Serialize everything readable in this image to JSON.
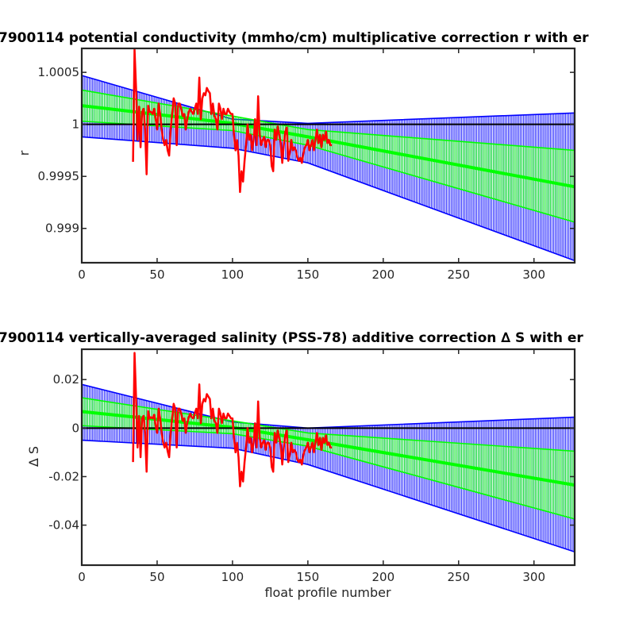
{
  "chart_data": [
    {
      "type": "line",
      "title": "7900114 potential conductivity (mmho/cm) multiplicative correction r with er",
      "xlabel": "",
      "ylabel": "r",
      "xlim": [
        0,
        327
      ],
      "ylim": [
        0.99867,
        1.00073
      ],
      "xticks": [
        0,
        50,
        100,
        150,
        200,
        250,
        300
      ],
      "xtick_labels": [
        "0",
        "50",
        "100",
        "150",
        "200",
        "250",
        "300"
      ],
      "yticks": [
        0.999,
        0.9995,
        1,
        1.0005
      ],
      "ytick_labels": [
        "0.999",
        "0.9995",
        "1",
        "1.0005"
      ],
      "reference_line": 1,
      "grid": false,
      "colors": {
        "blue": "#0000ff",
        "green": "#00ff00",
        "red": "#ff0000",
        "black": "#000000"
      },
      "series": [
        {
          "color": "blue",
          "role": "error band",
          "x": [
            0,
            100,
            150,
            327
          ],
          "upper": [
            1.00047,
            1.00005,
            1.00001,
            1.00011
          ],
          "lower": [
            0.99988,
            0.99977,
            0.99963,
            0.99869
          ]
        },
        {
          "color": "green",
          "role": "error band",
          "x": [
            0,
            100,
            150,
            327
          ],
          "upper": [
            1.00033,
            1.00008,
            0.99995,
            0.99975
          ],
          "lower": [
            1.00003,
            0.99994,
            0.9998,
            0.99906
          ]
        },
        {
          "color": "green",
          "role": "fit",
          "x": [
            0,
            100,
            150,
            327
          ],
          "y": [
            1.00018,
            1.00001,
            0.99988,
            0.9994
          ]
        },
        {
          "color": "red",
          "role": "profile data",
          "x": [
            34,
            35,
            36,
            37,
            38,
            39,
            40,
            41,
            42,
            43,
            44,
            45,
            46,
            47,
            48,
            49,
            50,
            51,
            52,
            53,
            54,
            55,
            56,
            57,
            58,
            59,
            60,
            61,
            62,
            63,
            64,
            65,
            66,
            67,
            68,
            69,
            70,
            71,
            72,
            73,
            74,
            75,
            76,
            77,
            78,
            79,
            80,
            81,
            82,
            83,
            84,
            85,
            86,
            87,
            88,
            89,
            90,
            91,
            92,
            93,
            94,
            95,
            96,
            97,
            98,
            99,
            100,
            101,
            102,
            103,
            104,
            105,
            106,
            107,
            108,
            109,
            110,
            111,
            112,
            113,
            114,
            115,
            116,
            117,
            118,
            119,
            120,
            121,
            122,
            123,
            124,
            125,
            126,
            127,
            128,
            129,
            130,
            131,
            132,
            133,
            134,
            135,
            136,
            137,
            138,
            139,
            140,
            141,
            142,
            143,
            144,
            145,
            146,
            147,
            148,
            149,
            150,
            151,
            152,
            153,
            154,
            155,
            156,
            157,
            158,
            159,
            160,
            161,
            162,
            163,
            164,
            165,
            166
          ],
          "y": [
            0.99964,
            1.00072,
            1.00035,
            0.99985,
            1.00017,
            0.99978,
            1.00012,
            1.00015,
            0.99995,
            0.99952,
            1.00018,
            1.00012,
            1.00012,
            1.0001,
            1.00015,
            1.00005,
            0.99995,
            1.0002,
            1.0001,
            0.99995,
            0.99985,
            0.9998,
            0.99985,
            0.99975,
            0.9997,
            0.99995,
            1.0001,
            1.00025,
            1.0002,
            0.9998,
            1.0002,
            1.0002,
            1.00015,
            1.00008,
            1.0001,
            0.99995,
            1.00005,
            1.00012,
            1.00015,
            1.00012,
            1.0001,
            1.00015,
            1.0002,
            1.0001,
            1.00045,
            1.00005,
            1.00025,
            1.0003,
            1.00028,
            1.00035,
            1.00032,
            1.0003,
            1.0001,
            1.0002,
            1.00008,
            1.00005,
            0.99995,
            1.0002,
            1.00015,
            1.00005,
            1.00015,
            1.0001,
            1.0001,
            1.00015,
            1.00012,
            1.0001,
            1.0001,
            0.9999,
            0.99975,
            0.99985,
            0.9997,
            0.99935,
            0.99955,
            0.99945,
            0.99965,
            0.9998,
            1.0,
            0.99985,
            0.9999,
            0.99975,
            0.99985,
            1.00005,
            0.9998,
            1.00027,
            0.9999,
            0.9998,
            0.99985,
            0.99988,
            0.99978,
            0.99985,
            0.99985,
            0.9998,
            0.9996,
            0.99955,
            0.99995,
            0.99985,
            0.99998,
            0.9999,
            0.99982,
            0.99963,
            0.9998,
            0.99993,
            0.99997,
            0.99965,
            0.99973,
            0.99985,
            0.99975,
            0.99978,
            0.99975,
            0.99968,
            0.99965,
            0.99968,
            0.99963,
            0.99972,
            0.99978,
            0.9998,
            0.99985,
            0.99975,
            0.9998,
            0.99985,
            0.99975,
            0.99985,
            0.99995,
            0.99982,
            0.9999,
            0.99978,
            0.9999,
            0.99985,
            0.99993,
            0.99982,
            0.99985,
            0.9998,
            0.9998
          ]
        }
      ]
    },
    {
      "type": "line",
      "title": "7900114 vertically-averaged salinity (PSS-78) additive correction ∆ S with er",
      "xlabel": "float profile number",
      "ylabel": "∆ S",
      "xlim": [
        0,
        327
      ],
      "ylim": [
        -0.0565,
        0.0325
      ],
      "xticks": [
        0,
        50,
        100,
        150,
        200,
        250,
        300
      ],
      "xtick_labels": [
        "0",
        "50",
        "100",
        "150",
        "200",
        "250",
        "300"
      ],
      "yticks": [
        -0.04,
        -0.02,
        0,
        0.02
      ],
      "ytick_labels": [
        "-0.04",
        "-0.02",
        "0",
        "0.02"
      ],
      "reference_line": 0,
      "grid": false,
      "colors": {
        "blue": "#0000ff",
        "green": "#00ff00",
        "red": "#ff0000",
        "black": "#000000"
      },
      "series": [
        {
          "color": "blue",
          "role": "error band",
          "x": [
            0,
            100,
            150,
            327
          ],
          "upper": [
            0.018,
            0.0025,
            0.0,
            0.0045
          ],
          "lower": [
            -0.005,
            -0.0083,
            -0.015,
            -0.051
          ]
        },
        {
          "color": "green",
          "role": "error band",
          "x": [
            0,
            100,
            150,
            327
          ],
          "upper": [
            0.0125,
            0.003,
            -0.002,
            -0.0095
          ],
          "lower": [
            0.001,
            -0.0023,
            -0.0075,
            -0.0375
          ]
        },
        {
          "color": "green",
          "role": "fit",
          "x": [
            0,
            100,
            150,
            327
          ],
          "y": [
            0.0068,
            0.0003,
            -0.0048,
            -0.0235
          ]
        },
        {
          "color": "red",
          "role": "profile data",
          "x": [
            34,
            35,
            36,
            37,
            38,
            39,
            40,
            41,
            42,
            43,
            44,
            45,
            46,
            47,
            48,
            49,
            50,
            51,
            52,
            53,
            54,
            55,
            56,
            57,
            58,
            59,
            60,
            61,
            62,
            63,
            64,
            65,
            66,
            67,
            68,
            69,
            70,
            71,
            72,
            73,
            74,
            75,
            76,
            77,
            78,
            79,
            80,
            81,
            82,
            83,
            84,
            85,
            86,
            87,
            88,
            89,
            90,
            91,
            92,
            93,
            94,
            95,
            96,
            97,
            98,
            99,
            100,
            101,
            102,
            103,
            104,
            105,
            106,
            107,
            108,
            109,
            110,
            111,
            112,
            113,
            114,
            115,
            116,
            117,
            118,
            119,
            120,
            121,
            122,
            123,
            124,
            125,
            126,
            127,
            128,
            129,
            130,
            131,
            132,
            133,
            134,
            135,
            136,
            137,
            138,
            139,
            140,
            141,
            142,
            143,
            144,
            145,
            146,
            147,
            148,
            149,
            150,
            151,
            152,
            153,
            154,
            155,
            156,
            157,
            158,
            159,
            160,
            161,
            162,
            163,
            164,
            165,
            166
          ],
          "y": [
            -0.014,
            0.031,
            0.0125,
            -0.008,
            0.005,
            -0.012,
            0.004,
            0.005,
            -0.002,
            -0.018,
            0.007,
            0.004,
            0.0045,
            0.004,
            0.0055,
            0.001,
            -0.002,
            0.008,
            0.004,
            -0.002,
            -0.006,
            -0.008,
            -0.006,
            -0.0095,
            -0.012,
            -0.002,
            0.004,
            0.01,
            0.008,
            -0.008,
            0.008,
            0.008,
            0.006,
            0.003,
            0.004,
            -0.002,
            0.002,
            0.0045,
            0.006,
            0.0045,
            0.004,
            0.006,
            0.008,
            0.004,
            0.018,
            0.002,
            0.01,
            0.012,
            0.011,
            0.014,
            0.013,
            0.012,
            0.004,
            0.008,
            0.003,
            0.002,
            -0.002,
            0.008,
            0.006,
            0.002,
            0.006,
            0.004,
            0.004,
            0.006,
            0.005,
            0.004,
            0.004,
            -0.004,
            -0.01,
            -0.006,
            -0.012,
            -0.024,
            -0.018,
            -0.022,
            -0.014,
            -0.008,
            0.0,
            -0.006,
            -0.004,
            -0.01,
            -0.006,
            0.002,
            -0.008,
            0.011,
            -0.004,
            -0.008,
            -0.006,
            -0.005,
            -0.009,
            -0.006,
            -0.006,
            -0.008,
            -0.016,
            -0.018,
            -0.002,
            -0.006,
            -0.001,
            -0.004,
            -0.007,
            -0.015,
            -0.008,
            -0.003,
            -0.001,
            -0.014,
            -0.011,
            -0.006,
            -0.01,
            -0.009,
            -0.01,
            -0.013,
            -0.014,
            -0.013,
            -0.015,
            -0.011,
            -0.009,
            -0.008,
            -0.006,
            -0.01,
            -0.008,
            -0.006,
            -0.01,
            -0.006,
            -0.002,
            -0.007,
            -0.004,
            -0.009,
            -0.004,
            -0.006,
            -0.003,
            -0.007,
            -0.006,
            -0.008,
            -0.008
          ]
        }
      ]
    }
  ]
}
